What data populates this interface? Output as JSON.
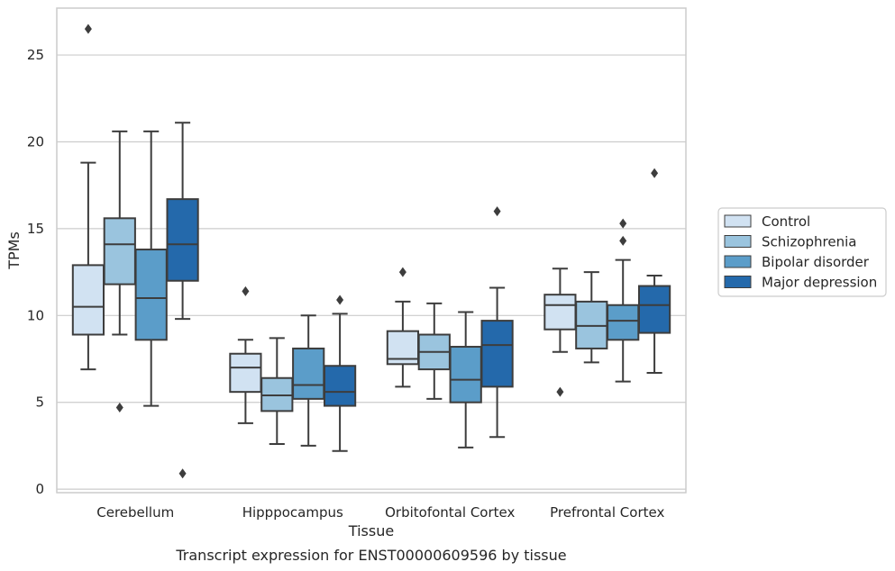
{
  "chart_data": {
    "type": "boxplot",
    "title": "",
    "caption": "Transcript expression for ENST00000609596 by tissue",
    "xlabel": "Tissue",
    "ylabel": "TPMs",
    "ylim": [
      -0.2,
      27.7
    ],
    "yticks": [
      0,
      5,
      10,
      15,
      20,
      25
    ],
    "grid": "horizontal",
    "legend_position": "right",
    "categories": [
      "Cerebellum",
      "Hipppocampus",
      "Orbitofontal Cortex",
      "Prefrontal Cortex"
    ],
    "series": [
      {
        "name": "Control",
        "color": "#d1e2f2",
        "boxes": [
          {
            "whisker_low": 6.9,
            "q1": 8.9,
            "median": 10.5,
            "q3": 12.9,
            "whisker_high": 18.8,
            "outliers": [
              26.5
            ]
          },
          {
            "whisker_low": 3.8,
            "q1": 5.6,
            "median": 7.0,
            "q3": 7.8,
            "whisker_high": 8.6,
            "outliers": [
              11.4
            ]
          },
          {
            "whisker_low": 5.9,
            "q1": 7.2,
            "median": 7.5,
            "q3": 9.1,
            "whisker_high": 10.8,
            "outliers": [
              12.5
            ]
          },
          {
            "whisker_low": 7.9,
            "q1": 9.2,
            "median": 10.6,
            "q3": 11.2,
            "whisker_high": 12.7,
            "outliers": [
              5.6
            ]
          }
        ]
      },
      {
        "name": "Schizophrenia",
        "color": "#9ac4de",
        "boxes": [
          {
            "whisker_low": 8.9,
            "q1": 11.8,
            "median": 14.1,
            "q3": 15.6,
            "whisker_high": 20.6,
            "outliers": [
              4.7
            ]
          },
          {
            "whisker_low": 2.6,
            "q1": 4.5,
            "median": 5.4,
            "q3": 6.4,
            "whisker_high": 8.7,
            "outliers": []
          },
          {
            "whisker_low": 5.2,
            "q1": 6.9,
            "median": 7.9,
            "q3": 8.9,
            "whisker_high": 10.7,
            "outliers": []
          },
          {
            "whisker_low": 7.3,
            "q1": 8.1,
            "median": 9.4,
            "q3": 10.8,
            "whisker_high": 12.5,
            "outliers": []
          }
        ]
      },
      {
        "name": "Bipolar disorder",
        "color": "#5b9dc9",
        "boxes": [
          {
            "whisker_low": 4.8,
            "q1": 8.6,
            "median": 11.0,
            "q3": 13.8,
            "whisker_high": 20.6,
            "outliers": []
          },
          {
            "whisker_low": 2.5,
            "q1": 5.2,
            "median": 6.0,
            "q3": 8.1,
            "whisker_high": 10.0,
            "outliers": []
          },
          {
            "whisker_low": 2.4,
            "q1": 5.0,
            "median": 6.3,
            "q3": 8.2,
            "whisker_high": 10.2,
            "outliers": []
          },
          {
            "whisker_low": 6.2,
            "q1": 8.6,
            "median": 9.7,
            "q3": 10.6,
            "whisker_high": 13.2,
            "outliers": [
              14.3,
              15.3
            ]
          }
        ]
      },
      {
        "name": "Major depression",
        "color": "#2469ab",
        "boxes": [
          {
            "whisker_low": 9.8,
            "q1": 12.0,
            "median": 14.1,
            "q3": 16.7,
            "whisker_high": 21.1,
            "outliers": [
              0.9
            ]
          },
          {
            "whisker_low": 2.2,
            "q1": 4.8,
            "median": 5.6,
            "q3": 7.1,
            "whisker_high": 10.1,
            "outliers": [
              10.9
            ]
          },
          {
            "whisker_low": 3.0,
            "q1": 5.9,
            "median": 8.3,
            "q3": 9.7,
            "whisker_high": 11.6,
            "outliers": [
              16.0
            ]
          },
          {
            "whisker_low": 6.7,
            "q1": 9.0,
            "median": 10.6,
            "q3": 11.7,
            "whisker_high": 12.3,
            "outliers": [
              18.2
            ]
          }
        ]
      }
    ]
  }
}
